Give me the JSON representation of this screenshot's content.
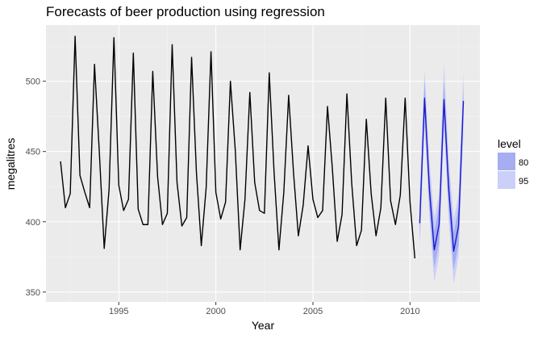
{
  "chart_data": {
    "type": "line",
    "title": "Forecasts of beer production using regression",
    "xlabel": "Year",
    "ylabel": "megalitres",
    "xlim": [
      1991.25,
      2013.6
    ],
    "ylim": [
      343,
      540
    ],
    "x_ticks": [
      1995,
      2000,
      2005,
      2010
    ],
    "x_tick_labels": [
      "1995",
      "2000",
      "2005",
      "2010"
    ],
    "y_ticks": [
      350,
      400,
      450,
      500
    ],
    "y_tick_labels": [
      "350",
      "400",
      "450",
      "500"
    ],
    "grid": true,
    "legend": {
      "title": "level",
      "position": "right",
      "entries": [
        {
          "label": "80",
          "color": "#a6adf0"
        },
        {
          "label": "95",
          "color": "#cbd0f8"
        }
      ]
    },
    "colors": {
      "panel_background": "#ebebeb",
      "grid_major": "#ffffff",
      "grid_minor": "#f5f5f5",
      "observed_line": "#000000",
      "forecast_line": "#1a1acc",
      "band_80": "#a6adf0",
      "band_95": "#cbd0f8"
    },
    "series": [
      {
        "values": [
          [
            1992.0,
            443
          ],
          [
            1992.25,
            410
          ],
          [
            1992.5,
            420
          ],
          [
            1992.75,
            532
          ],
          [
            1993.0,
            433
          ],
          [
            1993.25,
            421
          ],
          [
            1993.5,
            410
          ],
          [
            1993.75,
            512
          ],
          [
            1994.0,
            449
          ],
          [
            1994.25,
            381
          ],
          [
            1994.5,
            423
          ],
          [
            1994.75,
            531
          ],
          [
            1995.0,
            426
          ],
          [
            1995.25,
            408
          ],
          [
            1995.5,
            416
          ],
          [
            1995.75,
            520
          ],
          [
            1996.0,
            409
          ],
          [
            1996.25,
            398
          ],
          [
            1996.5,
            398
          ],
          [
            1996.75,
            507
          ],
          [
            1997.0,
            432
          ],
          [
            1997.25,
            398
          ],
          [
            1997.5,
            406
          ],
          [
            1997.75,
            526
          ],
          [
            1998.0,
            428
          ],
          [
            1998.25,
            397
          ],
          [
            1998.5,
            403
          ],
          [
            1998.75,
            517
          ],
          [
            1999.0,
            435
          ],
          [
            1999.25,
            383
          ],
          [
            1999.5,
            424
          ],
          [
            1999.75,
            521
          ],
          [
            2000.0,
            421
          ],
          [
            2000.25,
            402
          ],
          [
            2000.5,
            414
          ],
          [
            2000.75,
            500
          ],
          [
            2001.0,
            451
          ],
          [
            2001.25,
            380
          ],
          [
            2001.5,
            416
          ],
          [
            2001.75,
            492
          ],
          [
            2002.0,
            428
          ],
          [
            2002.25,
            408
          ],
          [
            2002.5,
            406
          ],
          [
            2002.75,
            506
          ],
          [
            2003.0,
            435
          ],
          [
            2003.25,
            380
          ],
          [
            2003.5,
            421
          ],
          [
            2003.75,
            490
          ],
          [
            2004.0,
            435
          ],
          [
            2004.25,
            390
          ],
          [
            2004.5,
            412
          ],
          [
            2004.75,
            454
          ],
          [
            2005.0,
            416
          ],
          [
            2005.25,
            403
          ],
          [
            2005.5,
            408
          ],
          [
            2005.75,
            482
          ],
          [
            2006.0,
            438
          ],
          [
            2006.25,
            386
          ],
          [
            2006.5,
            405
          ],
          [
            2006.75,
            491
          ],
          [
            2007.0,
            427
          ],
          [
            2007.25,
            383
          ],
          [
            2007.5,
            394
          ],
          [
            2007.75,
            473
          ],
          [
            2008.0,
            420
          ],
          [
            2008.25,
            390
          ],
          [
            2008.5,
            410
          ],
          [
            2008.75,
            488
          ],
          [
            2009.0,
            415
          ],
          [
            2009.25,
            398
          ],
          [
            2009.5,
            419
          ],
          [
            2009.75,
            488
          ],
          [
            2010.0,
            414
          ],
          [
            2010.25,
            374
          ]
        ]
      },
      {
        "values": [
          [
            2010.5,
            399
          ],
          [
            2010.75,
            488
          ],
          [
            2011.0,
            423
          ],
          [
            2011.25,
            380
          ],
          [
            2011.5,
            398
          ],
          [
            2011.75,
            487
          ],
          [
            2012.0,
            422
          ],
          [
            2012.25,
            379
          ],
          [
            2012.5,
            397
          ],
          [
            2012.75,
            486
          ]
        ],
        "band_80": [
          [
            2010.5,
            387,
            411
          ],
          [
            2010.75,
            476,
            500
          ],
          [
            2011.0,
            411,
            435
          ],
          [
            2011.25,
            367,
            393
          ],
          [
            2011.5,
            385,
            411
          ],
          [
            2011.75,
            474,
            500
          ],
          [
            2012.0,
            409,
            435
          ],
          [
            2012.25,
            366,
            392
          ],
          [
            2012.5,
            384,
            410
          ],
          [
            2012.75,
            473,
            499
          ]
        ],
        "band_95": [
          [
            2010.5,
            380,
            418
          ],
          [
            2010.75,
            468,
            508
          ],
          [
            2011.0,
            403,
            443
          ],
          [
            2011.25,
            357,
            403
          ],
          [
            2011.5,
            376,
            420
          ],
          [
            2011.75,
            465,
            513
          ],
          [
            2012.0,
            400,
            444
          ],
          [
            2012.25,
            356,
            402
          ],
          [
            2012.5,
            375,
            419
          ],
          [
            2012.75,
            464,
            506
          ]
        ]
      }
    ]
  }
}
